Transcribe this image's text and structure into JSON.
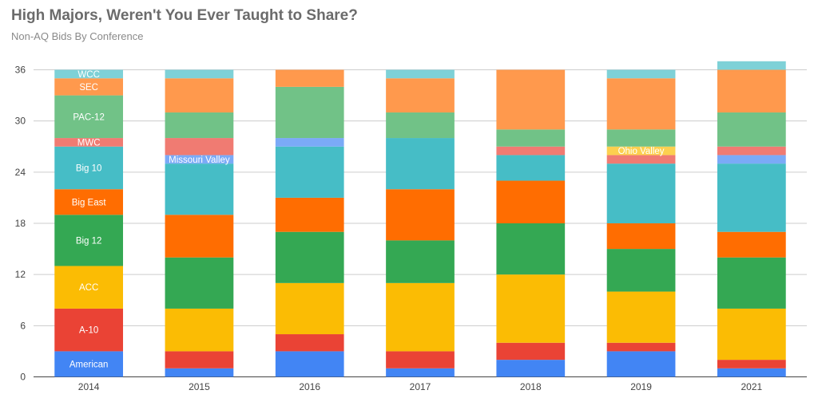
{
  "title": "High Majors, Weren't You Ever Taught to Share?",
  "subtitle": "Non-AQ Bids By Conference",
  "chart_data": {
    "type": "bar",
    "stacked": true,
    "title": "High Majors, Weren't You Ever Taught to Share?",
    "subtitle": "Non-AQ Bids By Conference",
    "xlabel": "",
    "ylabel": "",
    "ylim": [
      0,
      36
    ],
    "yticks": [
      0,
      6,
      12,
      18,
      24,
      30,
      36
    ],
    "grid": true,
    "legend": "none",
    "categories": [
      "2014",
      "2015",
      "2016",
      "2017",
      "2018",
      "2019",
      "2021"
    ],
    "series": [
      {
        "name": "American",
        "color": "#4285f4",
        "values": [
          3,
          1,
          3,
          1,
          2,
          3,
          1
        ]
      },
      {
        "name": "A-10",
        "color": "#ea4335",
        "values": [
          5,
          2,
          2,
          2,
          2,
          1,
          1
        ]
      },
      {
        "name": "ACC",
        "color": "#fbbc04",
        "values": [
          5,
          5,
          6,
          8,
          8,
          6,
          6
        ]
      },
      {
        "name": "Big 12",
        "color": "#34a853",
        "values": [
          6,
          6,
          6,
          5,
          6,
          5,
          6
        ]
      },
      {
        "name": "Big East",
        "color": "#ff6d01",
        "values": [
          3,
          5,
          4,
          6,
          5,
          3,
          3
        ]
      },
      {
        "name": "Big 10",
        "color": "#46bdc6",
        "values": [
          5,
          6,
          6,
          6,
          3,
          7,
          8
        ]
      },
      {
        "name": "Missouri Valley",
        "color": "#7baaf7",
        "values": [
          0,
          1,
          1,
          0,
          0,
          0,
          1
        ]
      },
      {
        "name": "MWC",
        "color": "#f07b72",
        "values": [
          1,
          2,
          0,
          0,
          1,
          1,
          1
        ]
      },
      {
        "name": "Ohio Valley",
        "color": "#fcd04f",
        "values": [
          0,
          0,
          0,
          0,
          0,
          1,
          0
        ]
      },
      {
        "name": "PAC-12",
        "color": "#71c287",
        "values": [
          5,
          3,
          6,
          3,
          2,
          2,
          4
        ]
      },
      {
        "name": "SEC",
        "color": "#ff994d",
        "values": [
          2,
          4,
          2,
          4,
          7,
          6,
          5
        ]
      },
      {
        "name": "WCC",
        "color": "#7ed1d7",
        "values": [
          1,
          1,
          0,
          1,
          0,
          1,
          1
        ]
      }
    ],
    "data_labels": [
      {
        "series": "American",
        "category": "2014",
        "text": "American"
      },
      {
        "series": "A-10",
        "category": "2014",
        "text": "A-10"
      },
      {
        "series": "ACC",
        "category": "2014",
        "text": "ACC"
      },
      {
        "series": "Big 12",
        "category": "2014",
        "text": "Big 12"
      },
      {
        "series": "Big East",
        "category": "2014",
        "text": "Big East"
      },
      {
        "series": "Big 10",
        "category": "2014",
        "text": "Big 10"
      },
      {
        "series": "MWC",
        "category": "2014",
        "text": "MWC"
      },
      {
        "series": "PAC-12",
        "category": "2014",
        "text": "PAC-12"
      },
      {
        "series": "SEC",
        "category": "2014",
        "text": "SEC"
      },
      {
        "series": "WCC",
        "category": "2014",
        "text": "WCC"
      },
      {
        "series": "Missouri Valley",
        "category": "2015",
        "text": "Missouri Valley"
      },
      {
        "series": "Ohio Valley",
        "category": "2019",
        "text": "Ohio Valley"
      }
    ]
  }
}
